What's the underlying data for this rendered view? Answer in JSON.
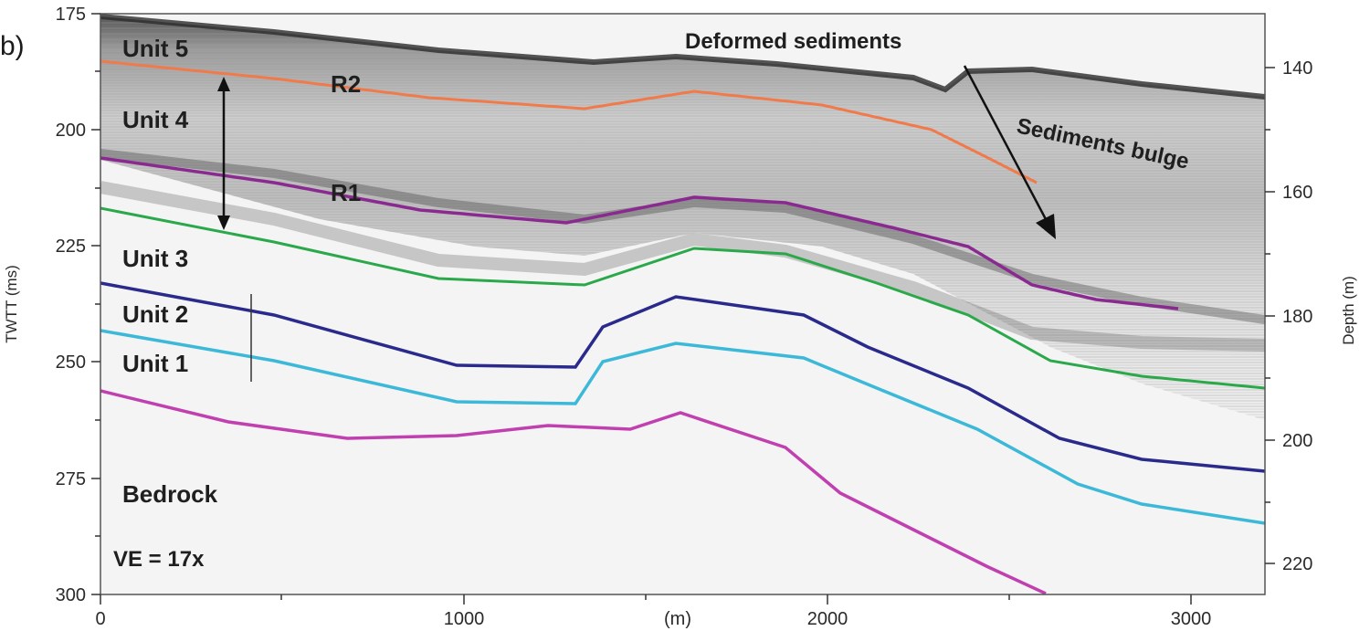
{
  "panel_label": "b)",
  "axes": {
    "left_title": "TWTT (ms)",
    "left_ticks": [
      "175",
      "200",
      "225",
      "250",
      "275",
      "300"
    ],
    "right_title": "Depth (m)",
    "right_ticks": [
      "140",
      "160",
      "180",
      "200",
      "220"
    ],
    "bottom_title": "(m)",
    "bottom_ticks": [
      "0",
      "1000",
      "2000",
      "3000"
    ]
  },
  "units": {
    "unit5": "Unit 5",
    "unit4": "Unit 4",
    "unit3": "Unit 3",
    "unit2": "Unit 2",
    "unit1": "Unit 1",
    "bedrock": "Bedrock"
  },
  "reflectors": {
    "r2": "R2",
    "r1": "R1"
  },
  "annotations": {
    "deformed": "Deformed sediments",
    "bulge": "Sediments bulge",
    "ve": "VE = 17x"
  },
  "colors": {
    "r2_line": "#f07a4a",
    "r1_line": "#8a2a90",
    "green_line": "#2aa84a",
    "navy_line": "#2a2a8c",
    "cyan_line": "#3cb8d8",
    "bedrock_line": "#c040b0"
  }
}
